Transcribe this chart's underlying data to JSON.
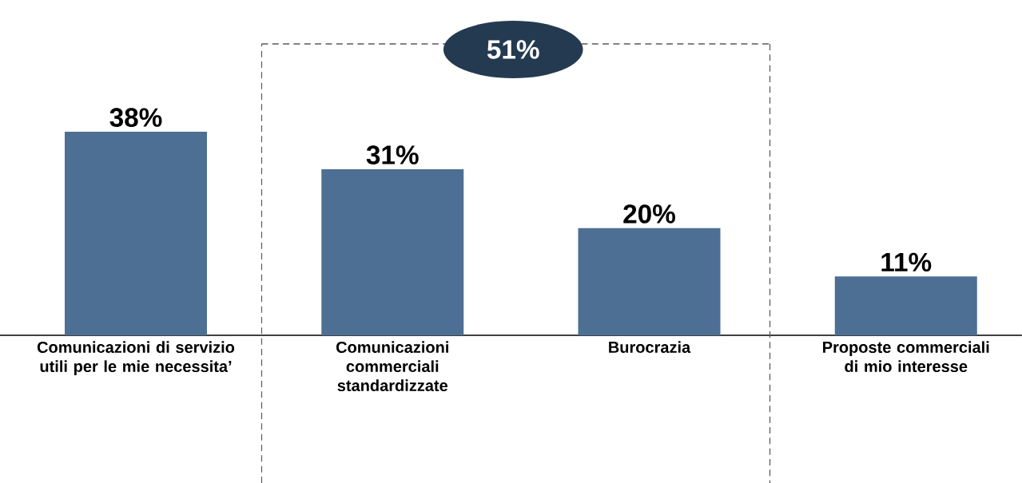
{
  "chart_data": {
    "type": "bar",
    "categories": [
      "Comunicazioni di servizio utili per le mie necessita’",
      "Comunicazioni commerciali standardizzate",
      "Burocrazia",
      "Proposte commerciali di mio interesse"
    ],
    "values": [
      38,
      31,
      20,
      11
    ],
    "value_labels": [
      "38%",
      "31%",
      "20%",
      "11%"
    ],
    "color": "#4d6f94",
    "tick_labels": "x",
    "annotations": [
      "51%"
    ]
  }
}
